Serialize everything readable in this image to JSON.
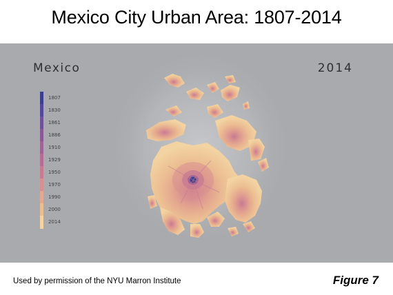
{
  "slide": {
    "title": "Mexico City Urban Area: 1807-2014",
    "credit": "Used by permission of the NYU Marron Institute",
    "figure_label": "Figure 7"
  },
  "map": {
    "city": "Mexico",
    "year": "2014",
    "legend": [
      {
        "year": "1807",
        "color": "#3b3f8f"
      },
      {
        "year": "1830",
        "color": "#54489a"
      },
      {
        "year": "1861",
        "color": "#6e5198"
      },
      {
        "year": "1886",
        "color": "#875a96"
      },
      {
        "year": "1910",
        "color": "#a06396"
      },
      {
        "year": "1929",
        "color": "#b56d95"
      },
      {
        "year": "1950",
        "color": "#c77a92"
      },
      {
        "year": "1970",
        "color": "#d88f90"
      },
      {
        "year": "1990",
        "color": "#e4a78f"
      },
      {
        "year": "2000",
        "color": "#ecbf93"
      },
      {
        "year": "2014",
        "color": "#f3d3a2"
      }
    ]
  }
}
